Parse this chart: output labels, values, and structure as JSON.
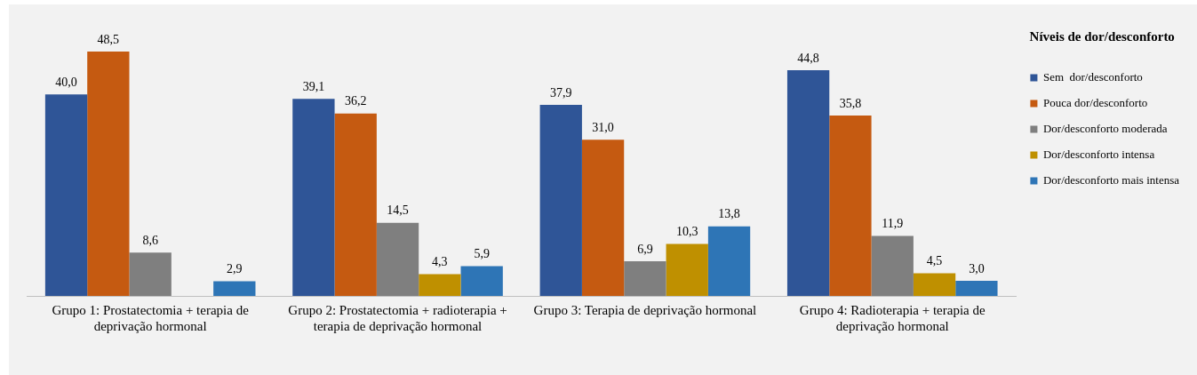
{
  "chart_data": {
    "type": "bar",
    "legend_title": "Níveis de dor/desconforto",
    "legend": "right",
    "categories": [
      "Grupo 1: Prostatectomia + terapia de deprivação hormonal",
      "Grupo 2: Prostatectomia + radioterapia + terapia de deprivação hormonal",
      "Grupo 3: Terapia de deprivação hormonal",
      "Grupo 4: Radioterapia + terapia de deprivação hormonal"
    ],
    "series": [
      {
        "name": "Sem  dor/desconforto",
        "color": "#2f5597",
        "values": [
          40.0,
          39.1,
          37.9,
          44.8
        ],
        "value_labels": [
          "40,0",
          "39,1",
          "37,9",
          "44,8"
        ]
      },
      {
        "name": "Pouca dor/desconforto",
        "color": "#c55a11",
        "values": [
          48.5,
          36.2,
          31.0,
          35.8
        ],
        "value_labels": [
          "48,5",
          "36,2",
          "31,0",
          "35,8"
        ]
      },
      {
        "name": "Dor/desconforto moderada",
        "color": "#7f7f7f",
        "values": [
          8.6,
          14.5,
          6.9,
          11.9
        ],
        "value_labels": [
          "8,6",
          "14,5",
          "6,9",
          "11,9"
        ]
      },
      {
        "name": "Dor/desconforto intensa",
        "color": "#bf9000",
        "values": [
          null,
          4.3,
          10.3,
          4.5
        ],
        "value_labels": [
          null,
          "4,3",
          "10,3",
          "4,5"
        ]
      },
      {
        "name": "Dor/desconforto mais intensa",
        "color": "#2e75b6",
        "values": [
          2.9,
          5.9,
          13.8,
          3.0
        ],
        "value_labels": [
          "2,9",
          "5,9",
          "13,8",
          "3,0"
        ]
      }
    ]
  }
}
